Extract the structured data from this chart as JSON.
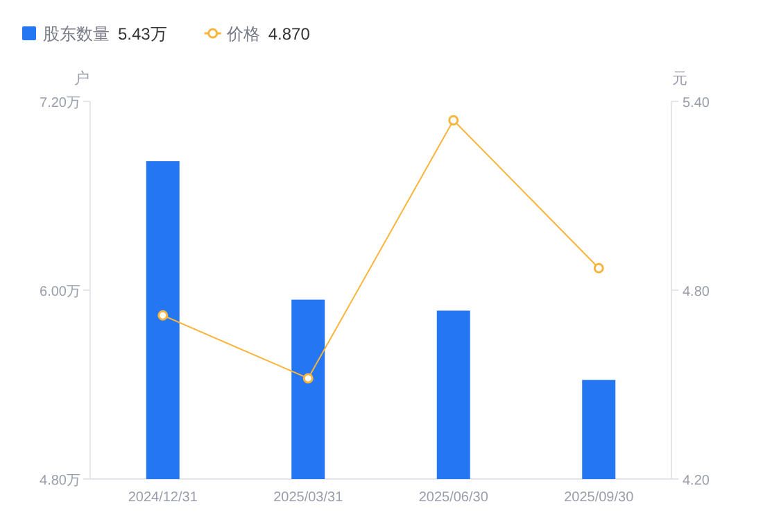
{
  "chart_data": {
    "type": "bar",
    "ylabel": "户",
    "y2label": "元",
    "categories": [
      "2024/12/31",
      "2025/03/31",
      "2025/06/30",
      "2025/09/30"
    ],
    "series": [
      {
        "name": "股东数量",
        "color": "#2476f3",
        "values": [
          6.82,
          5.94,
          5.87,
          5.43
        ]
      },
      {
        "name": "价格",
        "type": "line",
        "axis": "y2",
        "color": "#f9b43c",
        "marker": "circle",
        "values": [
          4.72,
          4.52,
          5.34,
          4.87
        ]
      }
    ],
    "annotations": [
      "5.43万",
      "4.870"
    ],
    "ylim": [
      4.8,
      7.2
    ],
    "yticks": [
      {
        "value": 4.8,
        "label": "4.80万"
      },
      {
        "value": 6.0,
        "label": "6.00万"
      },
      {
        "value": 7.2,
        "label": "7.20万"
      }
    ],
    "y2lim": [
      4.2,
      5.4
    ],
    "y2ticks": [
      {
        "value": 4.2,
        "label": "4.20"
      },
      {
        "value": 4.8,
        "label": "4.80"
      },
      {
        "value": 5.4,
        "label": "5.40"
      }
    ],
    "legend": "top left",
    "grid": false
  }
}
